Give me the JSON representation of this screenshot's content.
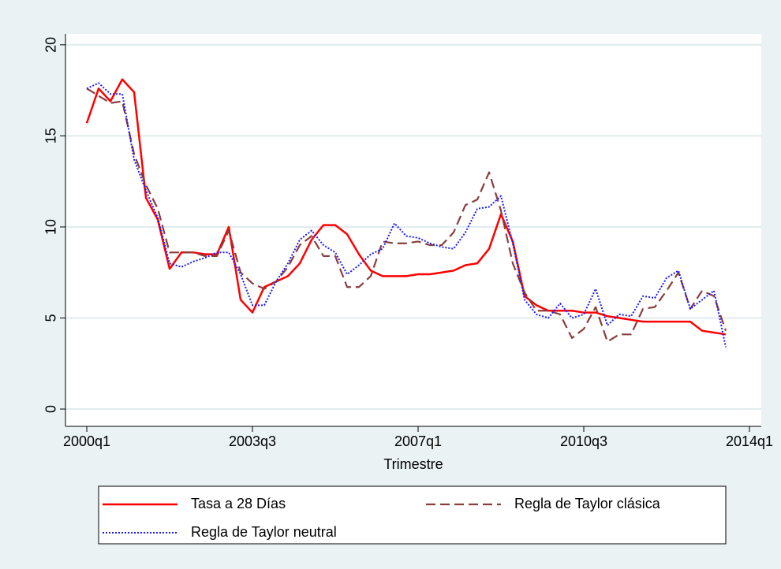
{
  "chart_data": {
    "type": "line",
    "x_label": "Trimestre",
    "x": [
      2000,
      2000.25,
      2000.5,
      2000.75,
      2001,
      2001.25,
      2001.5,
      2001.75,
      2002,
      2002.25,
      2002.5,
      2002.75,
      2003,
      2003.25,
      2003.5,
      2003.75,
      2004,
      2004.25,
      2004.5,
      2004.75,
      2005,
      2005.25,
      2005.5,
      2005.75,
      2006,
      2006.25,
      2006.5,
      2006.75,
      2007,
      2007.25,
      2007.5,
      2007.75,
      2008,
      2008.25,
      2008.5,
      2008.75,
      2009,
      2009.25,
      2009.5,
      2009.75,
      2010,
      2010.25,
      2010.5,
      2010.75,
      2011,
      2011.25,
      2011.5,
      2011.75,
      2012,
      2012.25,
      2012.5,
      2012.75,
      2013,
      2013.25,
      2013.5
    ],
    "series": [
      {
        "name": "Tasa a 28 Días",
        "color": "#ff0000",
        "style": "solid",
        "values": [
          15.7,
          17.6,
          16.9,
          18.1,
          17.4,
          11.6,
          10.4,
          7.7,
          8.6,
          8.6,
          8.5,
          8.5,
          10.0,
          6.0,
          5.3,
          6.7,
          7.0,
          7.3,
          8.0,
          9.3,
          10.1,
          10.1,
          9.6,
          8.5,
          7.6,
          7.3,
          7.3,
          7.3,
          7.4,
          7.4,
          7.5,
          7.6,
          7.9,
          8.0,
          8.8,
          10.7,
          9.2,
          6.2,
          5.7,
          5.4,
          5.4,
          5.4,
          5.3,
          5.3,
          5.1,
          5.0,
          4.9,
          4.8,
          4.8,
          4.8,
          4.8,
          4.8,
          4.3,
          4.2,
          4.1
        ]
      },
      {
        "name": "Regla de Taylor clásica",
        "color": "#8b3d3d",
        "style": "dashed",
        "values": [
          17.6,
          17.2,
          16.8,
          16.9,
          14.0,
          12.3,
          11.0,
          8.6,
          8.6,
          8.6,
          8.4,
          8.4,
          9.8,
          7.5,
          6.9,
          6.6,
          7.0,
          7.8,
          9.0,
          9.5,
          8.4,
          8.4,
          6.7,
          6.7,
          7.3,
          9.2,
          9.1,
          9.1,
          9.2,
          9.0,
          9.0,
          9.7,
          11.2,
          11.5,
          13.0,
          10.9,
          8.0,
          6.4,
          5.4,
          5.4,
          5.2,
          3.9,
          4.4,
          5.6,
          3.7,
          4.1,
          4.1,
          5.5,
          5.6,
          6.5,
          7.5,
          5.5,
          6.5,
          6.2,
          4.3
        ]
      },
      {
        "name": "Regla de Taylor neutral",
        "color": "#1a1aff",
        "style": "dotted",
        "values": [
          17.6,
          17.9,
          17.3,
          17.3,
          13.7,
          12.0,
          10.5,
          8.0,
          7.8,
          8.1,
          8.3,
          8.6,
          8.6,
          7.4,
          5.7,
          5.7,
          7.0,
          8.0,
          9.3,
          9.8,
          9.0,
          8.6,
          7.4,
          7.9,
          8.5,
          8.8,
          10.2,
          9.5,
          9.4,
          9.1,
          8.9,
          8.8,
          9.7,
          11.0,
          11.1,
          11.7,
          9.1,
          6.0,
          5.2,
          5.0,
          5.8,
          5.0,
          5.2,
          6.6,
          4.6,
          5.2,
          5.1,
          6.2,
          6.1,
          7.2,
          7.6,
          5.5,
          6.0,
          6.5,
          3.4
        ]
      }
    ],
    "xlim": [
      1999.55,
      2014.25
    ],
    "xticks": [
      {
        "value": 2000,
        "label": "2000q1"
      },
      {
        "value": 2003.5,
        "label": "2003q3"
      },
      {
        "value": 2007,
        "label": "2007q1"
      },
      {
        "value": 2010.5,
        "label": "2010q3"
      },
      {
        "value": 2014,
        "label": "2014q1"
      }
    ],
    "ylim": [
      -0.95,
      20.6
    ],
    "yticks": [
      0,
      5,
      10,
      15,
      20
    ],
    "grid": true,
    "legend": "bottom"
  }
}
